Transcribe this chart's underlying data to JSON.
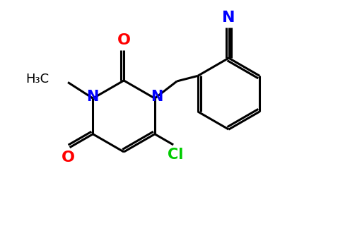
{
  "background_color": "#ffffff",
  "bond_color": "#000000",
  "N_color": "#0000ff",
  "O_color": "#ff0000",
  "Cl_color": "#00cc00",
  "CN_color": "#0000ff",
  "line_width": 2.2,
  "figsize": [
    5.12,
    3.34
  ],
  "dpi": 100,
  "xlim": [
    0,
    10
  ],
  "ylim": [
    0,
    6.5
  ]
}
